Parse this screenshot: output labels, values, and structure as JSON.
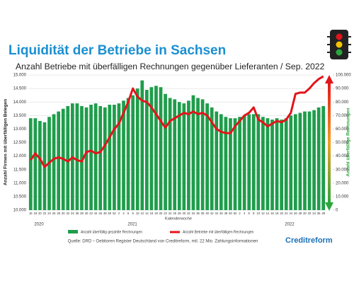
{
  "chart_data": {
    "type": "bar_line",
    "title": "Liquidität der Betriebe in Sachsen",
    "subtitle": "Anzahl Betriebe mit überfälligen Rechnungen gegenüber Lieferanten / Sep. 2022",
    "y_label": "Anzahl Firmen mit überfälligen Belegen",
    "y2_label": "Anzahl überfällige Rechnungen",
    "x_label": "Kalenderwoche",
    "year_labels": [
      "2020",
      "2021",
      "2022"
    ],
    "source": "Quelle: DRD – Debitoren Register Deutschland von Creditreform, mtl. 22 Mio. Zahlungsinformationen",
    "logo": "Creditreform",
    "categories": [
      "16",
      "18",
      "20",
      "22",
      "24",
      "26",
      "28",
      "30",
      "32",
      "34",
      "36",
      "38",
      "40",
      "42",
      "44",
      "46",
      "48",
      "50",
      "52",
      "2",
      "4",
      "6",
      "8",
      "10",
      "12",
      "14",
      "16",
      "18",
      "20",
      "22",
      "24",
      "26",
      "28",
      "30",
      "32",
      "34",
      "36",
      "38",
      "40",
      "42",
      "44",
      "46",
      "48",
      "50",
      "52",
      "2",
      "4",
      "6",
      "8",
      "10",
      "12",
      "14",
      "16",
      "18",
      "20",
      "22",
      "24",
      "26",
      "28",
      "30",
      "32",
      "34",
      "36",
      "38"
    ],
    "series": [
      {
        "name": "Anzahl überfällig gezahlte Rechnungen",
        "color": "#1f9d4b",
        "type": "bar",
        "axis": "y",
        "values": [
          13400,
          13400,
          13300,
          13250,
          13450,
          13550,
          13650,
          13750,
          13850,
          13950,
          13950,
          13850,
          13800,
          13900,
          13950,
          13850,
          13800,
          13900,
          13900,
          13950,
          14050,
          14150,
          14250,
          14500,
          14800,
          14450,
          14550,
          14600,
          14550,
          14300,
          14150,
          14100,
          14000,
          13950,
          14050,
          14250,
          14150,
          14100,
          13950,
          13800,
          13650,
          13550,
          13450,
          13400,
          13400,
          13450,
          13500,
          13550,
          13550,
          13550,
          13450,
          13400,
          13350,
          13400,
          13350,
          13400,
          13500,
          13550,
          13600,
          13650,
          13650,
          13700,
          13800,
          13850
        ]
      },
      {
        "name": "Anzahl Betriebe mit überfälligen Rechnungen",
        "color": "#e3141b",
        "type": "line",
        "axis": "y2",
        "values": [
          37000,
          42000,
          38000,
          32000,
          35000,
          38000,
          39000,
          38000,
          36000,
          39000,
          37000,
          36000,
          43000,
          44000,
          42000,
          43000,
          48000,
          54000,
          60000,
          64000,
          72000,
          80000,
          90000,
          84000,
          81000,
          80000,
          76000,
          71000,
          66000,
          61000,
          66000,
          68000,
          70000,
          72000,
          71000,
          73000,
          71000,
          72000,
          70000,
          65000,
          60000,
          58000,
          57000,
          57000,
          62000,
          66000,
          70000,
          72000,
          76000,
          67000,
          65000,
          62000,
          64000,
          66000,
          65000,
          67000,
          72000,
          86000,
          87000,
          87000,
          90000,
          94000,
          97000,
          99000
        ]
      }
    ],
    "ylim": [
      10000,
      15000
    ],
    "yticks": [
      {
        "value": 10000,
        "label": "10.000"
      },
      {
        "value": 10500,
        "label": "10.500"
      },
      {
        "value": 11000,
        "label": "11.000"
      },
      {
        "value": 11500,
        "label": "11.500"
      },
      {
        "value": 12000,
        "label": "12.000"
      },
      {
        "value": 12500,
        "label": "12.500"
      },
      {
        "value": 13000,
        "label": "13.000"
      },
      {
        "value": 13500,
        "label": "13.500"
      },
      {
        "value": 14000,
        "label": "14.000"
      },
      {
        "value": 14500,
        "label": "14.500"
      },
      {
        "value": 15000,
        "label": "15.000"
      }
    ],
    "y2lim": [
      0,
      100000
    ],
    "y2ticks": [
      0,
      {
        "value": 10000,
        "label": "10.000"
      },
      {
        "value": 20000,
        "label": "20.000"
      },
      {
        "value": 30000,
        "label": "30.000"
      },
      {
        "value": 40000,
        "label": "40.000"
      },
      {
        "value": 50000,
        "label": "50.000"
      },
      {
        "value": 60000,
        "label": "60.000"
      },
      {
        "value": 70000,
        "label": "70.000"
      },
      {
        "value": 80000,
        "label": "80.000"
      },
      {
        "value": 90000,
        "label": "90.000"
      },
      {
        "value": 100000,
        "label": "100.000"
      }
    ],
    "grid": true
  }
}
